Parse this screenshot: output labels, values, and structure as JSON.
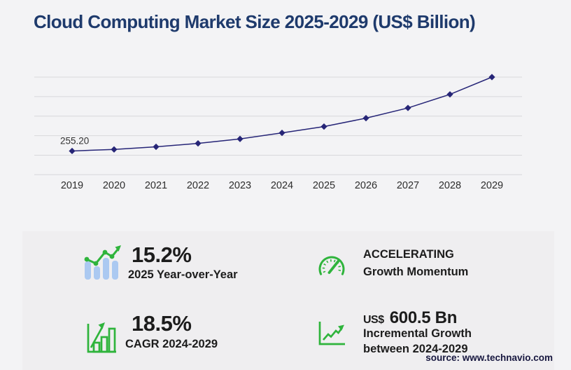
{
  "header": {
    "title": "Cloud Computing Market Size 2025-2029 (US$ Billion)"
  },
  "chart_data": {
    "type": "line",
    "title": "Cloud Computing Market Size 2025-2029 (US$ Billion)",
    "x": [
      "2019",
      "2020",
      "2021",
      "2022",
      "2023",
      "2024",
      "2025",
      "2026",
      "2027",
      "2028",
      "2029"
    ],
    "series": [
      {
        "name": "market_size_usd_bn",
        "values": [
          255.2,
          272,
          300,
          337,
          385,
          449.6,
          517.9,
          608,
          718,
          864,
          1050.1
        ]
      }
    ],
    "point_labels": {
      "2019": "255.20"
    },
    "ylim": [
      0,
      1050
    ],
    "grid": "horizontal",
    "gridline_count": 6,
    "legend": "none",
    "marker": "diamond",
    "note": "only 2019 value labeled on chart (255.20); later points estimated from plot geometry and the 15.2% YoY, 18.5% CAGR and +600.5 Bn callouts"
  },
  "stats": {
    "yoy": {
      "value": "15.2%",
      "label": "2025 Year-over-Year"
    },
    "momentum": {
      "line1": "ACCELERATING",
      "line2": "Growth Momentum"
    },
    "cagr": {
      "value": "18.5%",
      "label": "CAGR 2024-2029"
    },
    "incremental": {
      "currency": "US$",
      "value": "600.5 Bn",
      "line1": "Incremental Growth",
      "line2": "between 2024-2029"
    }
  },
  "footer": {
    "source": "source: www.technavio.com"
  },
  "colors": {
    "title_navy": "#1e3a6c",
    "line_navy": "#262577",
    "accent_green": "#2fb43c",
    "bar_blue": "#abc9f1",
    "grid_gray": "#d8d8db",
    "page_bg": "#f3f3f5",
    "panel_bg": "#efeef0",
    "text_dark": "#1c1c1c",
    "source_navy": "#17173f",
    "tick_gray": "#2d2d2d"
  }
}
